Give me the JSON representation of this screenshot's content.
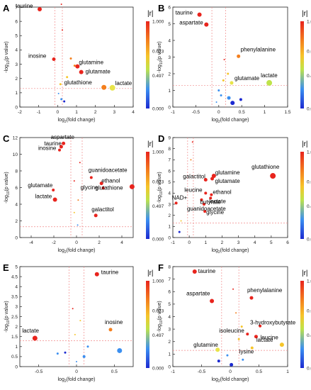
{
  "figure": {
    "colorbar": {
      "label": "|r|",
      "ticks": [
        "1.000",
        "0.623",
        "0.497",
        "0.000"
      ],
      "colors": [
        "#e8241d",
        "#f47f1d",
        "#f6c52a",
        "#bfe34a",
        "#3b8ff0",
        "#1c2ad1"
      ]
    },
    "xlabel_prefix": "log",
    "xlabel_sub": "2",
    "xlabel_suffix": "(fold change)",
    "ylabel_prefix": "-log",
    "ylabel_sub": "10",
    "ylabel_suffix": "(p value)"
  },
  "chart_data": [
    {
      "type": "scatter",
      "panel": "A",
      "xlim": [
        -2,
        4
      ],
      "ylim": [
        0,
        7
      ],
      "xticks": [
        "-2",
        "-1",
        "0",
        "1",
        "2",
        "3",
        "4"
      ],
      "yticks": [
        "0",
        "1",
        "2",
        "3",
        "4",
        "5",
        "6",
        "7"
      ],
      "hline": 1.3,
      "vlines": [
        -0.15,
        0.25
      ],
      "points": [
        {
          "x": -0.95,
          "y": 6.85,
          "label": "taurine",
          "color": "#e8241d",
          "size": 3
        },
        {
          "x": -0.2,
          "y": 3.35,
          "label": "inosine",
          "color": "#e8241d",
          "size": 2.5
        },
        {
          "x": 1.05,
          "y": 2.85,
          "label": "glutamine",
          "color": "#e8241d",
          "size": 3
        },
        {
          "x": 1.25,
          "y": 2.45,
          "label": "glutamate",
          "color": "#e8241d",
          "size": 3
        },
        {
          "x": 2.45,
          "y": 1.38,
          "label": "glutathione",
          "color": "#f47f1d",
          "size": 3.5
        },
        {
          "x": 2.9,
          "y": 1.35,
          "label": "lactate",
          "color": "#e8e44a",
          "size": 4
        },
        {
          "x": 0.2,
          "y": 7.2,
          "label": "",
          "color": "#e8241d",
          "size": 1
        },
        {
          "x": 0.25,
          "y": 5.4,
          "label": "",
          "color": "#e8241d",
          "size": 1
        },
        {
          "x": 0.7,
          "y": 3.4,
          "label": "",
          "color": "#f47f1d",
          "size": 1.5
        },
        {
          "x": 0.9,
          "y": 2.9,
          "label": "",
          "color": "#f47f1d",
          "size": 1.5
        },
        {
          "x": 0.5,
          "y": 2.1,
          "label": "",
          "color": "#f6c52a",
          "size": 1.5
        },
        {
          "x": 0.15,
          "y": 1.6,
          "label": "",
          "color": "#f6c52a",
          "size": 1.5
        },
        {
          "x": 0.05,
          "y": 0.95,
          "label": "",
          "color": "#3b8ff0",
          "size": 1
        },
        {
          "x": 0.2,
          "y": 0.55,
          "label": "",
          "color": "#3b8ff0",
          "size": 1.5
        },
        {
          "x": 0.35,
          "y": 0.4,
          "label": "",
          "color": "#1c2ad1",
          "size": 1.5
        }
      ]
    },
    {
      "type": "scatter",
      "panel": "B",
      "xlim": [
        -1,
        1.5
      ],
      "ylim": [
        0,
        6
      ],
      "xticks": [
        "-1",
        "-0.5",
        "0",
        "0.5",
        "1",
        "1.5"
      ],
      "yticks": [
        "0",
        "1",
        "2",
        "3",
        "4",
        "5",
        "6"
      ],
      "hline": 1.3,
      "vlines": [
        -0.15,
        0.15
      ],
      "points": [
        {
          "x": -0.42,
          "y": 5.55,
          "label": "taurine",
          "color": "#e8241d",
          "size": 3
        },
        {
          "x": -0.27,
          "y": 4.95,
          "label": "aspartate",
          "color": "#e8241d",
          "size": 3
        },
        {
          "x": 0.43,
          "y": 3.05,
          "label": "phenylalanine",
          "color": "#f47f1d",
          "size": 2.5
        },
        {
          "x": 0.28,
          "y": 1.45,
          "label": "glutamate",
          "color": "#e8e44a",
          "size": 2.5
        },
        {
          "x": 1.1,
          "y": 1.45,
          "label": "lactate",
          "color": "#bfe34a",
          "size": 4
        },
        {
          "x": 0.12,
          "y": 2.85,
          "label": "",
          "color": "#e8241d",
          "size": 1
        },
        {
          "x": 0.2,
          "y": 2.0,
          "label": "",
          "color": "#f6c52a",
          "size": 1.5
        },
        {
          "x": 0.1,
          "y": 1.6,
          "label": "",
          "color": "#f6c52a",
          "size": 1.5
        },
        {
          "x": 0.0,
          "y": 1.0,
          "label": "",
          "color": "#3b8ff0",
          "size": 1.5
        },
        {
          "x": 0.05,
          "y": 0.7,
          "label": "",
          "color": "#3b8ff0",
          "size": 1.5
        },
        {
          "x": 0.22,
          "y": 0.55,
          "label": "",
          "color": "#3b8ff0",
          "size": 2.5
        },
        {
          "x": 0.48,
          "y": 0.45,
          "label": "",
          "color": "#1c2ad1",
          "size": 2
        },
        {
          "x": 0.3,
          "y": 0.25,
          "label": "",
          "color": "#1c2ad1",
          "size": 3
        },
        {
          "x": -0.05,
          "y": 0.3,
          "label": "",
          "color": "#3b8ff0",
          "size": 1
        }
      ]
    },
    {
      "type": "scatter",
      "panel": "C",
      "xlim": [
        -5,
        5
      ],
      "ylim": [
        0,
        12
      ],
      "xticks": [
        "-4",
        "-2",
        "0",
        "2",
        "4"
      ],
      "yticks": [
        "0",
        "2",
        "4",
        "6",
        "8",
        "10",
        "12"
      ],
      "hline": 1.3,
      "vlines": [
        -0.5,
        0.5
      ],
      "points": [
        {
          "x": -1.15,
          "y": 11.3,
          "label": "aspartate",
          "color": "#e8241d",
          "size": 2.5
        },
        {
          "x": -1.35,
          "y": 10.9,
          "label": "taurine",
          "color": "#e8241d",
          "size": 2.5
        },
        {
          "x": -1.5,
          "y": 10.5,
          "label": "inosine",
          "color": "#e8241d",
          "size": 2
        },
        {
          "x": 1.3,
          "y": 7.2,
          "label": "guanidoacetate",
          "color": "#e8241d",
          "size": 2
        },
        {
          "x": 2.2,
          "y": 6.5,
          "label": "ethanol",
          "color": "#e8241d",
          "size": 2.5
        },
        {
          "x": 2.35,
          "y": 5.95,
          "label": "glycine",
          "color": "#e8241d",
          "size": 2
        },
        {
          "x": 4.9,
          "y": 6.1,
          "label": "glutathione",
          "color": "#e8241d",
          "size": 3.5
        },
        {
          "x": -2.05,
          "y": 5.7,
          "label": "glutamate",
          "color": "#e8241d",
          "size": 2
        },
        {
          "x": -1.9,
          "y": 4.55,
          "label": "lactate",
          "color": "#e8241d",
          "size": 3
        },
        {
          "x": 1.7,
          "y": 2.65,
          "label": "galactitol",
          "color": "#e8241d",
          "size": 2.5
        },
        {
          "x": 0.3,
          "y": 9.0,
          "label": "",
          "color": "#e8241d",
          "size": 1
        },
        {
          "x": -0.2,
          "y": 6.8,
          "label": "",
          "color": "#e8241d",
          "size": 1
        },
        {
          "x": 0.15,
          "y": 4.5,
          "label": "",
          "color": "#f47f1d",
          "size": 1
        },
        {
          "x": -0.2,
          "y": 3.0,
          "label": "",
          "color": "#f6c52a",
          "size": 1
        },
        {
          "x": 0.1,
          "y": 1.5,
          "label": "",
          "color": "#3b8ff0",
          "size": 1
        }
      ]
    },
    {
      "type": "scatter",
      "panel": "D",
      "xlim": [
        -1,
        6
      ],
      "ylim": [
        0,
        9
      ],
      "xticks": [
        "-1",
        "0",
        "1",
        "2",
        "3",
        "4",
        "5",
        "6"
      ],
      "yticks": [
        "0",
        "1",
        "2",
        "3",
        "4",
        "5",
        "6",
        "7",
        "8",
        "9"
      ],
      "hline": 1.3,
      "vlines": [
        -0.1,
        0.25
      ],
      "points": [
        {
          "x": 5.1,
          "y": 5.55,
          "label": "glutathione",
          "color": "#e8241d",
          "size": 4
        },
        {
          "x": 1.5,
          "y": 5.55,
          "label": "glutamine",
          "color": "#e8241d",
          "size": 3
        },
        {
          "x": 1.4,
          "y": 5.3,
          "label": "glutamate",
          "color": "#e8241d",
          "size": 2.5
        },
        {
          "x": 1.0,
          "y": 5.2,
          "label": "galactitol",
          "color": "#e8241d",
          "size": 2.5
        },
        {
          "x": 1.0,
          "y": 4.0,
          "label": "leucine",
          "color": "#e8241d",
          "size": 2
        },
        {
          "x": 1.35,
          "y": 3.85,
          "label": "ethanol",
          "color": "#e8241d",
          "size": 2
        },
        {
          "x": 1.3,
          "y": 3.55,
          "label": "lactate",
          "color": "#e8241d",
          "size": 2
        },
        {
          "x": 0.75,
          "y": 3.4,
          "label": "butyrate",
          "color": "#e8241d",
          "size": 2
        },
        {
          "x": -0.8,
          "y": 3.1,
          "label": "NAD+",
          "color": "#e8241d",
          "size": 2
        },
        {
          "x": 0.9,
          "y": 3.0,
          "label": "guanidoacetate",
          "color": "#e8241d",
          "size": 2
        },
        {
          "x": 0.95,
          "y": 2.35,
          "label": "glycine",
          "color": "#e8241d",
          "size": 2
        },
        {
          "x": 0.2,
          "y": 8.6,
          "label": "",
          "color": "#e8241d",
          "size": 1
        },
        {
          "x": 0.1,
          "y": 7.0,
          "label": "",
          "color": "#f47f1d",
          "size": 1
        },
        {
          "x": -0.5,
          "y": 1.5,
          "label": "",
          "color": "#f6c52a",
          "size": 1
        },
        {
          "x": -0.6,
          "y": 0.5,
          "label": "",
          "color": "#1c2ad1",
          "size": 1.5
        }
      ]
    },
    {
      "type": "scatter",
      "panel": "E",
      "xlim": [
        -0.75,
        0.75
      ],
      "ylim": [
        0,
        5
      ],
      "xticks": [
        "-0.5",
        "0",
        "0.5"
      ],
      "yticks": [
        "0",
        "0.5",
        "1",
        "1.5",
        "2",
        "2.5",
        "3",
        "3.5",
        "4",
        "4.5",
        "5"
      ],
      "hline": 1.3,
      "vlines": [
        -0.1,
        0.1
      ],
      "points": [
        {
          "x": 0.27,
          "y": 4.62,
          "label": "taurine",
          "color": "#e8241d",
          "size": 3
        },
        {
          "x": 0.45,
          "y": 1.85,
          "label": "inosine",
          "color": "#f47f1d",
          "size": 2.5
        },
        {
          "x": -0.55,
          "y": 1.42,
          "label": "lactate",
          "color": "#e8241d",
          "size": 3.5
        },
        {
          "x": 0.57,
          "y": 0.8,
          "label": "",
          "color": "#3b8ff0",
          "size": 3.5
        },
        {
          "x": -0.05,
          "y": 2.9,
          "label": "",
          "color": "#e8241d",
          "size": 1
        },
        {
          "x": 0.05,
          "y": 2.3,
          "label": "",
          "color": "#f6c52a",
          "size": 1
        },
        {
          "x": -0.02,
          "y": 1.6,
          "label": "",
          "color": "#f6c52a",
          "size": 1
        },
        {
          "x": 0.15,
          "y": 1.0,
          "label": "",
          "color": "#3b8ff0",
          "size": 1.5
        },
        {
          "x": -0.15,
          "y": 0.7,
          "label": "",
          "color": "#1c2ad1",
          "size": 1.5
        },
        {
          "x": 0.1,
          "y": 0.5,
          "label": "",
          "color": "#3b8ff0",
          "size": 2
        },
        {
          "x": -0.25,
          "y": 0.65,
          "label": "",
          "color": "#3b8ff0",
          "size": 1.5
        },
        {
          "x": 0.0,
          "y": 0.25,
          "label": "",
          "color": "#3b8ff0",
          "size": 1
        }
      ]
    },
    {
      "type": "scatter",
      "panel": "F",
      "xlim": [
        -1,
        1
      ],
      "ylim": [
        0,
        8
      ],
      "xticks": [
        "-1",
        "-0.5",
        "0",
        "0.5",
        "1"
      ],
      "yticks": [
        "0",
        "1",
        "2",
        "3",
        "4",
        "5",
        "6",
        "7",
        "8"
      ],
      "hline": 1.3,
      "vlines": [
        -0.15,
        0.15
      ],
      "points": [
        {
          "x": -0.62,
          "y": 7.6,
          "label": "taurine",
          "color": "#e8241d",
          "size": 3
        },
        {
          "x": -0.32,
          "y": 5.25,
          "label": "aspartate",
          "color": "#e8241d",
          "size": 3
        },
        {
          "x": 0.37,
          "y": 5.5,
          "label": "phenylalanine",
          "color": "#e8241d",
          "size": 2.5
        },
        {
          "x": 0.52,
          "y": 3.25,
          "label": "3-hydroxybutyrate",
          "color": "#e8241d",
          "size": 2
        },
        {
          "x": 0.3,
          "y": 2.6,
          "label": "isoleucine",
          "color": "#e8241d",
          "size": 2
        },
        {
          "x": 0.45,
          "y": 2.4,
          "label": "leucine",
          "color": "#e8241d",
          "size": 2.5
        },
        {
          "x": 0.9,
          "y": 1.75,
          "label": "lactate",
          "color": "#f6c52a",
          "size": 3
        },
        {
          "x": 0.38,
          "y": 1.5,
          "label": "lysine",
          "color": "#f6c52a",
          "size": 2
        },
        {
          "x": -0.22,
          "y": 1.35,
          "label": "glutamine",
          "color": "#e8e44a",
          "size": 3
        },
        {
          "x": 0.05,
          "y": 6.2,
          "label": "",
          "color": "#e8241d",
          "size": 1
        },
        {
          "x": 0.1,
          "y": 4.3,
          "label": "",
          "color": "#f47f1d",
          "size": 1
        },
        {
          "x": 0.2,
          "y": 3.2,
          "label": "",
          "color": "#f6c52a",
          "size": 1.5
        },
        {
          "x": 0.15,
          "y": 2.2,
          "label": "",
          "color": "#f6c52a",
          "size": 1.5
        },
        {
          "x": -0.05,
          "y": 0.9,
          "label": "",
          "color": "#3b8ff0",
          "size": 1.5
        },
        {
          "x": -0.2,
          "y": 0.45,
          "label": "",
          "color": "#1c2ad1",
          "size": 2
        },
        {
          "x": 0.02,
          "y": 0.15,
          "label": "",
          "color": "#1c2ad1",
          "size": 2.5
        },
        {
          "x": 0.22,
          "y": 0.55,
          "label": "",
          "color": "#3b8ff0",
          "size": 1.5
        }
      ]
    }
  ]
}
